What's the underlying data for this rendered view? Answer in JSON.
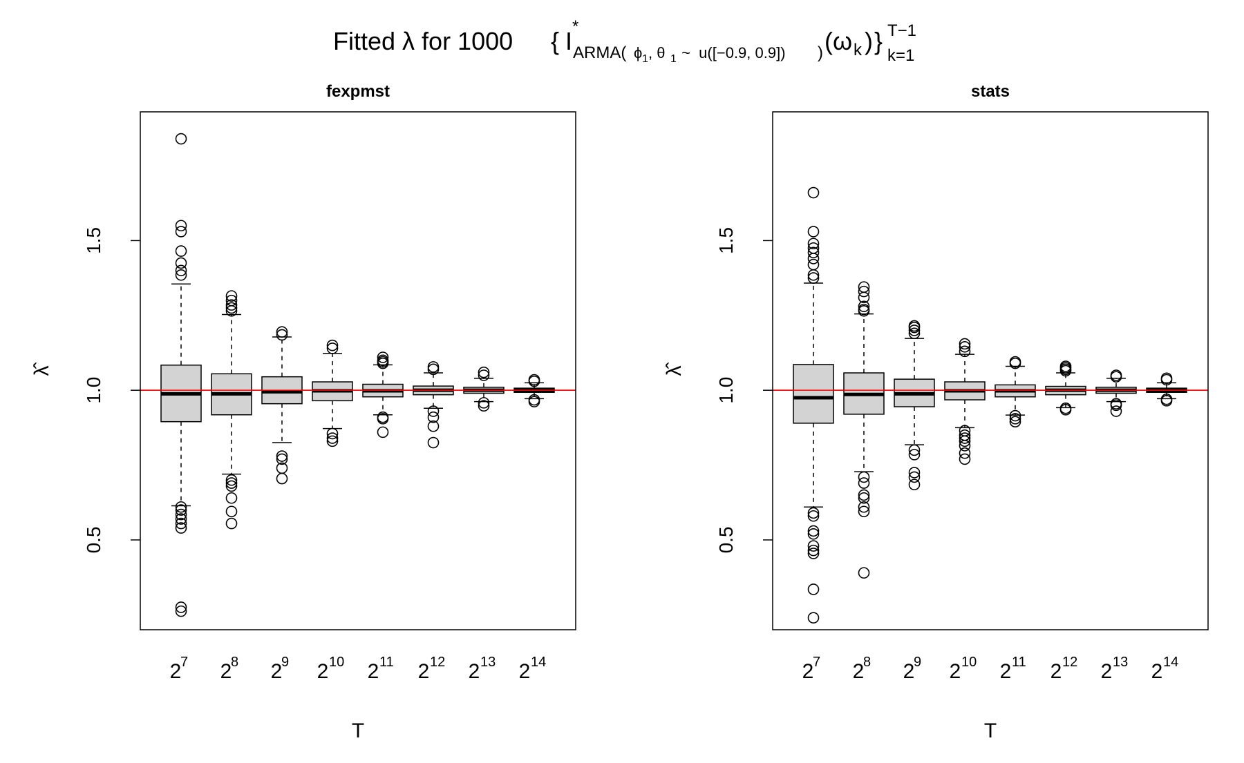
{
  "title": {
    "prefix": "Fitted λ for 1000",
    "brace_open": "{",
    "I": "I",
    "star": "*",
    "sub_arma": "ARMA(",
    "phi": "ϕ",
    "phi_sub": "1",
    "comma_theta": ", θ",
    "theta_sub": "1",
    "dist": " ~  u([−0.9, 0.9])",
    "close_sub": ")",
    "omega": "(ω",
    "omega_sub": "k",
    "omega_close": ")",
    "brace_close": "}",
    "sup": "T−1",
    "sub": "k=1"
  },
  "colors": {
    "box_fill": "#d3d3d3",
    "reference_line": "#ff0000",
    "stroke": "#000000"
  },
  "chart_data": [
    {
      "type": "boxplot",
      "title": "fexpmst",
      "xlabel": "T",
      "ylabel": "λ̂",
      "ylim": [
        0.2,
        1.93
      ],
      "yticks": [
        "0.5",
        "1.0",
        "1.5"
      ],
      "ytick_values": [
        0.5,
        1.0,
        1.5
      ],
      "reference_line": 1.0,
      "categories": [
        {
          "base": "2",
          "exp": "7"
        },
        {
          "base": "2",
          "exp": "8"
        },
        {
          "base": "2",
          "exp": "9"
        },
        {
          "base": "2",
          "exp": "10"
        },
        {
          "base": "2",
          "exp": "11"
        },
        {
          "base": "2",
          "exp": "12"
        },
        {
          "base": "2",
          "exp": "13"
        },
        {
          "base": "2",
          "exp": "14"
        }
      ],
      "boxes": [
        {
          "lower_whisker": 0.614,
          "q1": 0.895,
          "median": 0.988,
          "q3": 1.084,
          "upper_whisker": 1.355,
          "outliers": [
            1.84,
            1.55,
            1.53,
            1.465,
            1.425,
            1.4,
            1.385,
            0.61,
            0.6,
            0.585,
            0.57,
            0.555,
            0.54,
            0.275,
            0.262
          ]
        },
        {
          "lower_whisker": 0.72,
          "q1": 0.918,
          "median": 0.988,
          "q3": 1.055,
          "upper_whisker": 1.253,
          "outliers": [
            1.315,
            1.3,
            1.285,
            1.275,
            1.265,
            0.7,
            0.69,
            0.68,
            0.64,
            0.595,
            0.555
          ]
        },
        {
          "lower_whisker": 0.825,
          "q1": 0.955,
          "median": 0.995,
          "q3": 1.045,
          "upper_whisker": 1.178,
          "outliers": [
            1.195,
            1.185,
            0.78,
            0.77,
            0.74,
            0.705
          ]
        },
        {
          "lower_whisker": 0.872,
          "q1": 0.965,
          "median": 0.998,
          "q3": 1.028,
          "upper_whisker": 1.123,
          "outliers": [
            1.15,
            1.14,
            0.855,
            0.84,
            0.83
          ]
        },
        {
          "lower_whisker": 0.918,
          "q1": 0.978,
          "median": 0.998,
          "q3": 1.02,
          "upper_whisker": 1.085,
          "outliers": [
            1.11,
            1.1,
            1.095,
            1.09,
            0.91,
            0.905,
            0.86
          ]
        },
        {
          "lower_whisker": 0.94,
          "q1": 0.985,
          "median": 1.0,
          "q3": 1.014,
          "upper_whisker": 1.058,
          "outliers": [
            1.078,
            1.07,
            0.93,
            0.91,
            0.88,
            0.825
          ]
        },
        {
          "lower_whisker": 0.962,
          "q1": 0.99,
          "median": 1.0,
          "q3": 1.01,
          "upper_whisker": 1.04,
          "outliers": [
            1.06,
            1.05,
            0.958,
            0.948
          ]
        },
        {
          "lower_whisker": 0.972,
          "q1": 0.993,
          "median": 1.0,
          "q3": 1.007,
          "upper_whisker": 1.025,
          "outliers": [
            1.035,
            1.03,
            0.968,
            0.962
          ]
        }
      ]
    },
    {
      "type": "boxplot",
      "title": "stats",
      "xlabel": "T",
      "ylabel": "λ̂",
      "ylim": [
        0.2,
        1.93
      ],
      "yticks": [
        "0.5",
        "1.0",
        "1.5"
      ],
      "ytick_values": [
        0.5,
        1.0,
        1.5
      ],
      "reference_line": 1.0,
      "categories": [
        {
          "base": "2",
          "exp": "7"
        },
        {
          "base": "2",
          "exp": "8"
        },
        {
          "base": "2",
          "exp": "9"
        },
        {
          "base": "2",
          "exp": "10"
        },
        {
          "base": "2",
          "exp": "11"
        },
        {
          "base": "2",
          "exp": "12"
        },
        {
          "base": "2",
          "exp": "13"
        },
        {
          "base": "2",
          "exp": "14"
        }
      ],
      "boxes": [
        {
          "lower_whisker": 0.61,
          "q1": 0.89,
          "median": 0.975,
          "q3": 1.086,
          "upper_whisker": 1.358,
          "outliers": [
            1.66,
            1.53,
            1.49,
            1.475,
            1.46,
            1.44,
            1.42,
            1.385,
            1.375,
            0.59,
            0.58,
            0.53,
            0.52,
            0.48,
            0.465,
            0.455,
            0.335,
            0.24
          ]
        },
        {
          "lower_whisker": 0.728,
          "q1": 0.92,
          "median": 0.986,
          "q3": 1.058,
          "upper_whisker": 1.255,
          "outliers": [
            1.345,
            1.33,
            1.31,
            1.28,
            1.27,
            1.265,
            0.71,
            0.69,
            0.65,
            0.64,
            0.61,
            0.595,
            0.39
          ]
        },
        {
          "lower_whisker": 0.818,
          "q1": 0.945,
          "median": 0.988,
          "q3": 1.037,
          "upper_whisker": 1.173,
          "outliers": [
            1.215,
            1.21,
            1.2,
            1.19,
            0.8,
            0.785,
            0.725,
            0.71,
            0.685
          ]
        },
        {
          "lower_whisker": 0.875,
          "q1": 0.968,
          "median": 0.998,
          "q3": 1.028,
          "upper_whisker": 1.12,
          "outliers": [
            1.155,
            1.145,
            1.13,
            0.865,
            0.85,
            0.84,
            0.83,
            0.815,
            0.79,
            0.77
          ]
        },
        {
          "lower_whisker": 0.917,
          "q1": 0.978,
          "median": 0.998,
          "q3": 1.018,
          "upper_whisker": 1.08,
          "outliers": [
            1.095,
            1.09,
            0.915,
            0.905,
            0.895
          ]
        },
        {
          "lower_whisker": 0.942,
          "q1": 0.985,
          "median": 1.0,
          "q3": 1.013,
          "upper_whisker": 1.058,
          "outliers": [
            1.08,
            1.075,
            1.07,
            1.065,
            0.94,
            0.935
          ]
        },
        {
          "lower_whisker": 0.962,
          "q1": 0.99,
          "median": 1.0,
          "q3": 1.01,
          "upper_whisker": 1.04,
          "outliers": [
            1.05,
            1.045,
            0.955,
            0.95,
            0.93
          ]
        },
        {
          "lower_whisker": 0.972,
          "q1": 0.993,
          "median": 1.0,
          "q3": 1.007,
          "upper_whisker": 1.025,
          "outliers": [
            1.04,
            1.035,
            0.97,
            0.965
          ]
        }
      ]
    }
  ]
}
